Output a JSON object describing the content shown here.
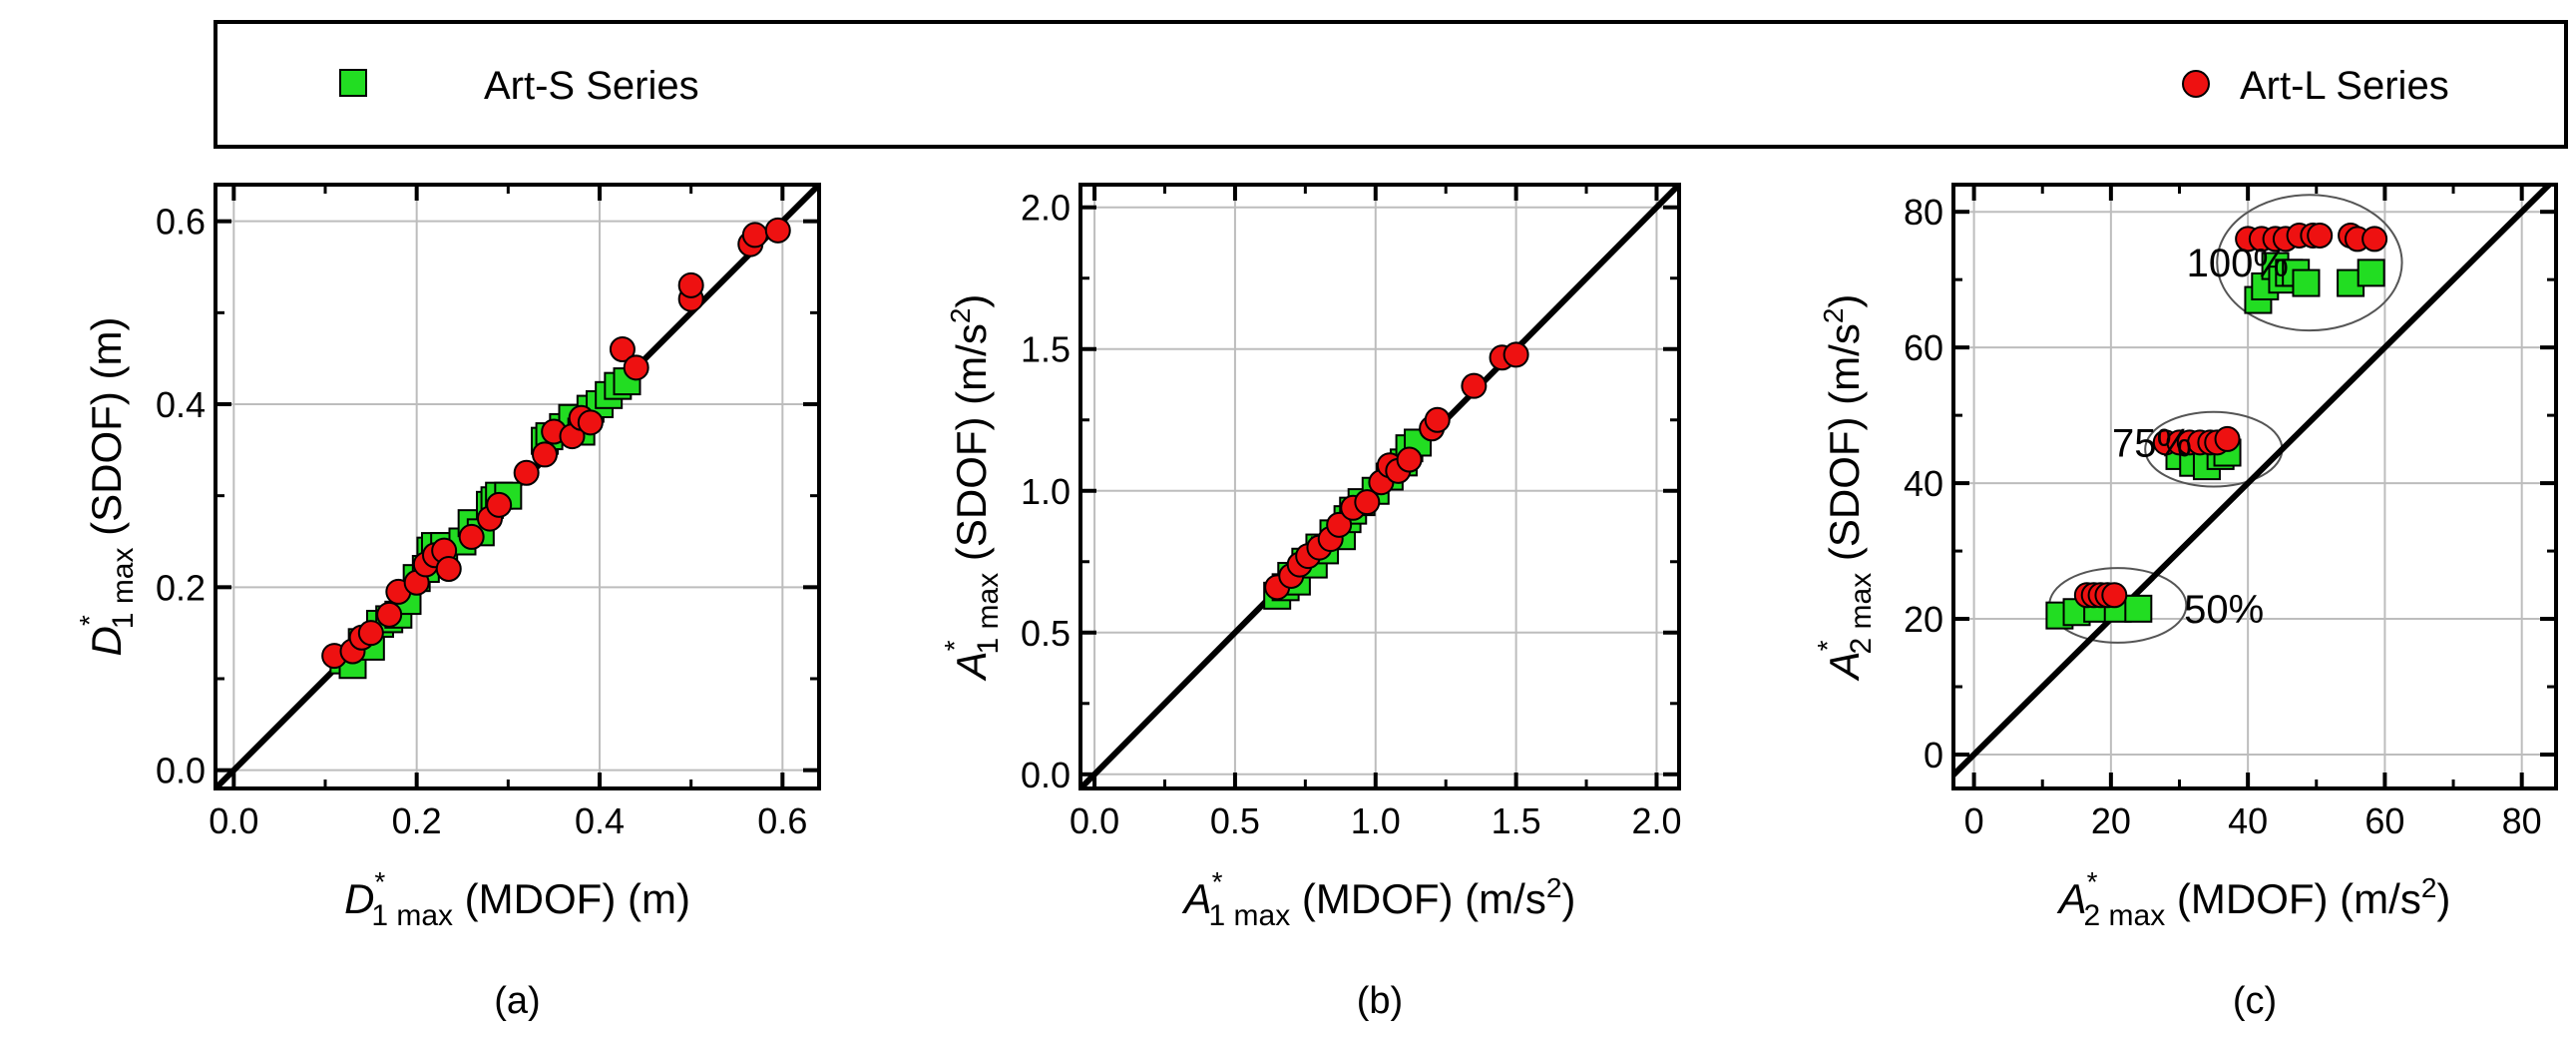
{
  "legend": {
    "items": [
      {
        "label": "Art-S Series",
        "marker": "square",
        "color": "#22dd22"
      },
      {
        "label": "Art-L Series",
        "marker": "circle",
        "color": "#ee1111"
      }
    ]
  },
  "chart_data": [
    {
      "type": "scatter",
      "panel_label": "(a)",
      "xlabel": {
        "sym": "D",
        "sub": "1 max",
        "sup": "*",
        "rest": " (MDOF) (m)"
      },
      "ylabel": {
        "sym": "D",
        "sub": "1 max",
        "sup": "*",
        "rest": " (SDOF) (m)"
      },
      "xlim": [
        -0.02,
        0.64
      ],
      "ylim": [
        -0.02,
        0.64
      ],
      "xticks": [
        0.0,
        0.2,
        0.4,
        0.6
      ],
      "yticks": [
        0.0,
        0.2,
        0.4,
        0.6
      ],
      "tick_labels_x": [
        "0.0",
        "0.2",
        "0.4",
        "0.6"
      ],
      "tick_labels_y": [
        "0.0",
        "0.2",
        "0.4",
        "0.6"
      ],
      "minor_step": 0.1,
      "grid": true,
      "reference_line": "y=x",
      "series": [
        {
          "name": "Art-S Series",
          "marker": "square",
          "color": "#22dd22",
          "points": [
            [
              0.12,
              0.12
            ],
            [
              0.13,
              0.115
            ],
            [
              0.14,
              0.14
            ],
            [
              0.15,
              0.135
            ],
            [
              0.16,
              0.16
            ],
            [
              0.17,
              0.165
            ],
            [
              0.18,
              0.17
            ],
            [
              0.19,
              0.185
            ],
            [
              0.2,
              0.21
            ],
            [
              0.21,
              0.22
            ],
            [
              0.215,
              0.24
            ],
            [
              0.22,
              0.245
            ],
            [
              0.23,
              0.245
            ],
            [
              0.25,
              0.25
            ],
            [
              0.26,
              0.27
            ],
            [
              0.27,
              0.26
            ],
            [
              0.28,
              0.29
            ],
            [
              0.285,
              0.295
            ],
            [
              0.29,
              0.3
            ],
            [
              0.3,
              0.3
            ],
            [
              0.34,
              0.36
            ],
            [
              0.345,
              0.365
            ],
            [
              0.36,
              0.375
            ],
            [
              0.37,
              0.385
            ],
            [
              0.38,
              0.37
            ],
            [
              0.39,
              0.395
            ],
            [
              0.4,
              0.4
            ],
            [
              0.41,
              0.41
            ],
            [
              0.42,
              0.42
            ],
            [
              0.43,
              0.425
            ]
          ]
        },
        {
          "name": "Art-L Series",
          "marker": "circle",
          "color": "#ee1111",
          "points": [
            [
              0.11,
              0.125
            ],
            [
              0.13,
              0.13
            ],
            [
              0.14,
              0.145
            ],
            [
              0.15,
              0.15
            ],
            [
              0.17,
              0.17
            ],
            [
              0.18,
              0.195
            ],
            [
              0.2,
              0.205
            ],
            [
              0.21,
              0.225
            ],
            [
              0.22,
              0.235
            ],
            [
              0.23,
              0.24
            ],
            [
              0.235,
              0.22
            ],
            [
              0.26,
              0.255
            ],
            [
              0.28,
              0.275
            ],
            [
              0.29,
              0.29
            ],
            [
              0.32,
              0.325
            ],
            [
              0.34,
              0.345
            ],
            [
              0.35,
              0.37
            ],
            [
              0.37,
              0.365
            ],
            [
              0.38,
              0.385
            ],
            [
              0.39,
              0.38
            ],
            [
              0.425,
              0.46
            ],
            [
              0.44,
              0.44
            ],
            [
              0.5,
              0.515
            ],
            [
              0.5,
              0.53
            ],
            [
              0.565,
              0.575
            ],
            [
              0.57,
              0.585
            ],
            [
              0.595,
              0.59
            ]
          ]
        }
      ]
    },
    {
      "type": "scatter",
      "panel_label": "(b)",
      "xlabel": {
        "sym": "A",
        "sub": "1 max",
        "sup": "*",
        "rest": " (MDOF) (m/s",
        "rest_sup": "2",
        "rest_end": ")"
      },
      "ylabel": {
        "sym": "A",
        "sub": "1 max",
        "sup": "*",
        "rest": " (SDOF) (m/s",
        "rest_sup": "2",
        "rest_end": ")"
      },
      "xlim": [
        -0.05,
        2.08
      ],
      "ylim": [
        -0.05,
        2.08
      ],
      "xticks": [
        0.0,
        0.5,
        1.0,
        1.5,
        2.0
      ],
      "yticks": [
        0.0,
        0.5,
        1.0,
        1.5,
        2.0
      ],
      "tick_labels_x": [
        "0.0",
        "0.5",
        "1.0",
        "1.5",
        "2.0"
      ],
      "tick_labels_y": [
        "0.0",
        "0.5",
        "1.0",
        "1.5",
        "2.0"
      ],
      "minor_step": 0.25,
      "grid": true,
      "reference_line": "y=x",
      "series": [
        {
          "name": "Art-S Series",
          "marker": "square",
          "color": "#22dd22",
          "points": [
            [
              0.65,
              0.63
            ],
            [
              0.68,
              0.66
            ],
            [
              0.7,
              0.7
            ],
            [
              0.72,
              0.68
            ],
            [
              0.75,
              0.75
            ],
            [
              0.78,
              0.74
            ],
            [
              0.8,
              0.8
            ],
            [
              0.82,
              0.79
            ],
            [
              0.85,
              0.85
            ],
            [
              0.88,
              0.84
            ],
            [
              0.9,
              0.9
            ],
            [
              0.92,
              0.93
            ],
            [
              0.95,
              0.96
            ],
            [
              1.0,
              1.0
            ],
            [
              1.05,
              1.05
            ],
            [
              1.1,
              1.1
            ],
            [
              1.12,
              1.15
            ],
            [
              1.15,
              1.17
            ]
          ]
        },
        {
          "name": "Art-L Series",
          "marker": "circle",
          "color": "#ee1111",
          "points": [
            [
              0.65,
              0.66
            ],
            [
              0.7,
              0.7
            ],
            [
              0.73,
              0.74
            ],
            [
              0.76,
              0.77
            ],
            [
              0.8,
              0.8
            ],
            [
              0.84,
              0.83
            ],
            [
              0.87,
              0.88
            ],
            [
              0.92,
              0.94
            ],
            [
              0.97,
              0.96
            ],
            [
              1.02,
              1.03
            ],
            [
              1.05,
              1.09
            ],
            [
              1.08,
              1.07
            ],
            [
              1.12,
              1.11
            ],
            [
              1.2,
              1.22
            ],
            [
              1.22,
              1.25
            ],
            [
              1.35,
              1.37
            ],
            [
              1.45,
              1.47
            ],
            [
              1.5,
              1.48
            ]
          ]
        }
      ]
    },
    {
      "type": "scatter",
      "panel_label": "(c)",
      "xlabel": {
        "sym": "A",
        "sub": "2 max",
        "sup": "*",
        "rest": " (MDOF) (m/s",
        "rest_sup": "2",
        "rest_end": ")"
      },
      "ylabel": {
        "sym": "A",
        "sub": "2 max",
        "sup": "*",
        "rest": " (SDOF) (m/s",
        "rest_sup": "2",
        "rest_end": ")"
      },
      "xlim": [
        -3,
        85
      ],
      "ylim": [
        -5,
        84
      ],
      "xticks": [
        0,
        20,
        40,
        60,
        80
      ],
      "yticks": [
        0,
        20,
        40,
        60,
        80
      ],
      "tick_labels_x": [
        "0",
        "20",
        "40",
        "60",
        "80"
      ],
      "tick_labels_y": [
        "0",
        "20",
        "40",
        "60",
        "80"
      ],
      "minor_step": 10,
      "grid": true,
      "reference_line": "y=x",
      "annotations": [
        {
          "text": "100%",
          "x": 38.5,
          "y": 72.5,
          "ellipse": {
            "cx": 49,
            "cy": 72.5,
            "rx": 13.5,
            "ry": 10
          }
        },
        {
          "text": "75%",
          "x": 26,
          "y": 46,
          "ellipse": {
            "cx": 35,
            "cy": 45,
            "rx": 10,
            "ry": 5.5
          }
        },
        {
          "text": "50%",
          "x": 36.5,
          "y": 21.5,
          "ellipse": {
            "cx": 21,
            "cy": 22,
            "rx": 10,
            "ry": 5.5
          }
        }
      ],
      "series": [
        {
          "name": "Art-S Series",
          "marker": "square",
          "color": "#22dd22",
          "points": [
            [
              41.5,
              67
            ],
            [
              42.5,
              69
            ],
            [
              44,
              72
            ],
            [
              45,
              70
            ],
            [
              46,
              71
            ],
            [
              47,
              71
            ],
            [
              48.5,
              69.5
            ],
            [
              55,
              69.5
            ],
            [
              58,
              71
            ],
            [
              30,
              44
            ],
            [
              32,
              43
            ],
            [
              34,
              42.5
            ],
            [
              36,
              44
            ],
            [
              37,
              44.5
            ],
            [
              12.5,
              20.5
            ],
            [
              15,
              21
            ],
            [
              18,
              21.5
            ],
            [
              21,
              21.5
            ],
            [
              24,
              21.5
            ]
          ]
        },
        {
          "name": "Art-L Series",
          "marker": "circle",
          "color": "#ee1111",
          "points": [
            [
              40,
              76
            ],
            [
              42,
              76
            ],
            [
              44,
              76
            ],
            [
              45.5,
              76
            ],
            [
              47.5,
              76.5
            ],
            [
              49.5,
              76.5
            ],
            [
              50.5,
              76.5
            ],
            [
              55,
              76.5
            ],
            [
              56,
              76
            ],
            [
              58.5,
              76
            ],
            [
              28,
              46
            ],
            [
              30,
              46
            ],
            [
              31.5,
              46
            ],
            [
              33,
              46
            ],
            [
              34.5,
              46
            ],
            [
              35.5,
              46
            ],
            [
              37,
              46.5
            ],
            [
              16.5,
              23.5
            ],
            [
              17.5,
              23.5
            ],
            [
              18.5,
              23.5
            ],
            [
              19.5,
              23.5
            ],
            [
              20.5,
              23.5
            ]
          ]
        }
      ]
    }
  ]
}
